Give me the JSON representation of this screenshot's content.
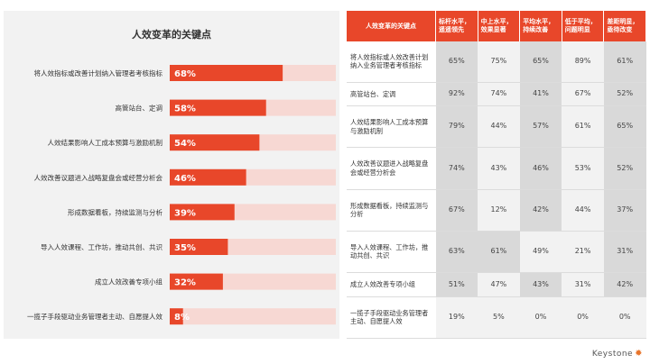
{
  "chart_data": {
    "type": "bar",
    "orientation": "horizontal",
    "title": "人效变革的关键点",
    "categories": [
      "将人效指标或改善计划纳入管理者考核指标",
      "高管站台、定调",
      "人效结果影响人工成本预算与激励机制",
      "人效改善议题进入战略复盘会或经营分析会",
      "形成数据看板，持续监测与分析",
      "导入人效课程、工作坊，推动共创、共识",
      "成立人效改善专项小组",
      "一揽子手段驱动业务管理者主动、自愿提人效"
    ],
    "values": [
      68,
      58,
      54,
      46,
      39,
      35,
      32,
      8
    ],
    "value_labels": [
      "68%",
      "58%",
      "54%",
      "46%",
      "39%",
      "35%",
      "32%",
      "8%"
    ],
    "xlim": [
      0,
      100
    ],
    "bar_color": "#e8472a",
    "track_color": "#f7d8d3"
  },
  "table": {
    "header_row": "人效变革的关键点",
    "columns": [
      "标杆水平，遥遥领先",
      "中上水平，效果显著",
      "平均水平，持续改善",
      "低于平均，问题明显",
      "差距明显，亟待改变"
    ],
    "rows": [
      {
        "label": "将人效指标或人效改善计划纳入业务管理者考核指标",
        "values": [
          "65%",
          "75%",
          "65%",
          "89%",
          "61%"
        ]
      },
      {
        "label": "高管站台、定调",
        "values": [
          "92%",
          "74%",
          "41%",
          "67%",
          "52%"
        ]
      },
      {
        "label": "人效结果影响人工成本预算与激励机制",
        "values": [
          "79%",
          "44%",
          "57%",
          "61%",
          "65%"
        ]
      },
      {
        "label": "人效改善议题进入战略复盘会或经营分析会",
        "values": [
          "74%",
          "43%",
          "46%",
          "53%",
          "52%"
        ]
      },
      {
        "label": "形成数据看板，持续监测与分析",
        "values": [
          "67%",
          "12%",
          "42%",
          "44%",
          "37%"
        ]
      },
      {
        "label": "导入人效课程、工作坊，推动共创、共识",
        "values": [
          "63%",
          "61%",
          "49%",
          "21%",
          "31%"
        ]
      },
      {
        "label": "成立人效改善专项小组",
        "values": [
          "51%",
          "47%",
          "43%",
          "31%",
          "42%"
        ]
      },
      {
        "label": "一揽子手段驱动业务管理者主动、自愿提人效",
        "values": [
          "19%",
          "5%",
          "0%",
          "0%",
          "0%"
        ]
      }
    ],
    "highlight_pattern": [
      [
        true,
        false,
        true,
        false,
        true
      ],
      [
        true,
        false,
        true,
        false,
        true
      ],
      [
        true,
        false,
        true,
        false,
        true
      ],
      [
        true,
        false,
        true,
        false,
        true
      ],
      [
        true,
        false,
        true,
        false,
        true
      ],
      [
        true,
        true,
        false,
        false,
        true
      ],
      [
        true,
        false,
        true,
        false,
        true
      ],
      [
        false,
        false,
        false,
        false,
        false
      ]
    ],
    "header_color": "#e8472a",
    "highlight_color": "#d9d9d9",
    "plain_color": "#f2f2f2"
  },
  "footer": {
    "brand": "Keystone",
    "brand_icon": "sun-icon"
  }
}
